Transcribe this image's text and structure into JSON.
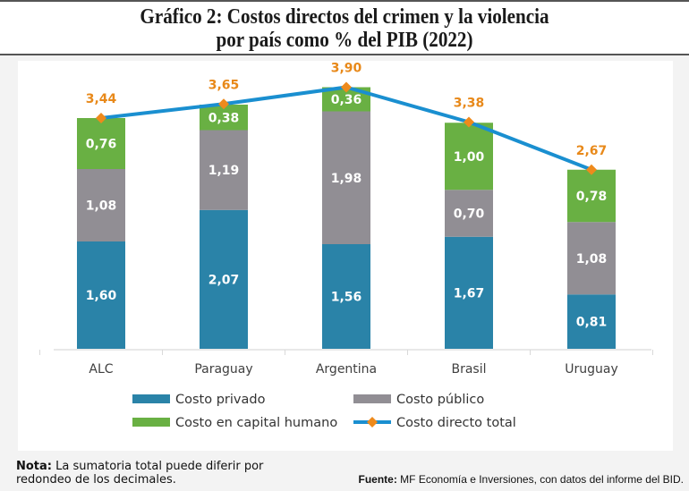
{
  "title": {
    "line1": "Gráfico 2: Costos directos del crimen y la violencia",
    "line2": "por país como % del PIB (2022)"
  },
  "colors": {
    "privado": "#2a83a8",
    "publico": "#918e94",
    "capital": "#69b043",
    "line": "#1a8fd0",
    "marker": "#ee8a1c",
    "total_label": "#e8891a"
  },
  "chart_data": {
    "type": "bar",
    "stacked": true,
    "title": "Gráfico 2: Costos directos del crimen y la violencia por país como % del PIB (2022)",
    "xlabel": "",
    "ylabel": "",
    "categories": [
      "ALC",
      "Paraguay",
      "Argentina",
      "Brasil",
      "Uruguay"
    ],
    "series": [
      {
        "name": "Costo privado",
        "key": "privado",
        "values": [
          1.6,
          2.07,
          1.56,
          1.67,
          0.81
        ],
        "labels": [
          "1,60",
          "2,07",
          "1,56",
          "1,67",
          "0,81"
        ]
      },
      {
        "name": "Costo público",
        "key": "publico",
        "values": [
          1.08,
          1.19,
          1.98,
          0.7,
          1.08
        ],
        "labels": [
          "1,08",
          "1,19",
          "1,98",
          "0,70",
          "1,08"
        ]
      },
      {
        "name": "Costo en capital humano",
        "key": "capital",
        "values": [
          0.76,
          0.38,
          0.36,
          1.0,
          0.78
        ],
        "labels": [
          "0,76",
          "0,38",
          "0,36",
          "1,00",
          "0,78"
        ]
      }
    ],
    "line_series": {
      "name": "Costo directo total",
      "type": "line",
      "values": [
        3.44,
        3.65,
        3.9,
        3.38,
        2.67
      ],
      "labels": [
        "3,44",
        "3,65",
        "3,90",
        "3,38",
        "2,67"
      ]
    },
    "ylim": [
      0,
      4.2
    ],
    "grid": false,
    "legend_position": "bottom"
  },
  "legend": [
    {
      "label": "Costo privado",
      "kind": "box",
      "color_key": "privado"
    },
    {
      "label": "Costo público",
      "kind": "box",
      "color_key": "publico"
    },
    {
      "label": "Costo en capital humano",
      "kind": "box",
      "color_key": "capital"
    },
    {
      "label": "Costo directo total",
      "kind": "line",
      "color_key": "line"
    }
  ],
  "footer": {
    "note_label": "Nota:",
    "note_text": " La sumatoria total puede diferir por redondeo de los decimales.",
    "source_label": "Fuente:",
    "source_text": " MF Economía e Inversiones, con datos del informe del BID."
  }
}
